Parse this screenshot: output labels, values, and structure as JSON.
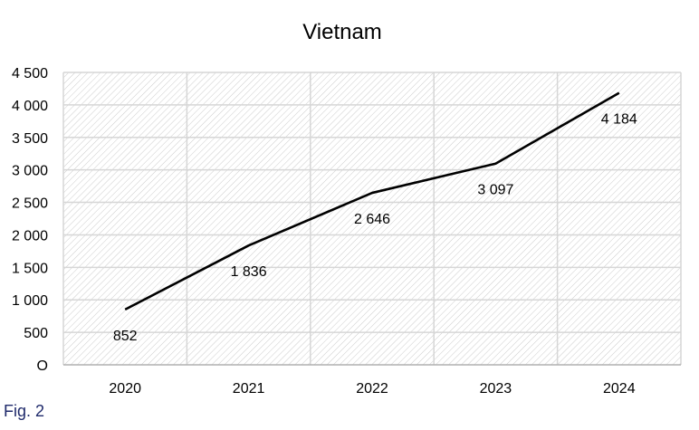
{
  "figure": {
    "caption": "Fig. 2"
  },
  "chart_data": {
    "type": "line",
    "title": "Vietnam",
    "categories": [
      "2020",
      "2021",
      "2022",
      "2023",
      "2024"
    ],
    "series": [
      {
        "values": [
          852,
          1836,
          2646,
          3097,
          4184
        ],
        "labels": [
          "852",
          "1 836",
          "2 646",
          "3 097",
          "4 184"
        ]
      }
    ],
    "y_ticks": [
      "O",
      "500",
      "1 000",
      "1 500",
      "2 000",
      "2 500",
      "3 000",
      "3 500",
      "4 000",
      "4 500"
    ],
    "ylim": [
      0,
      4500
    ],
    "xlabel": "",
    "ylabel": "",
    "grid": true,
    "colors": {
      "line": "#000000",
      "grid": "#d6d6d6",
      "hatch": "#c8c8c8",
      "caption": "#1f2a6b"
    }
  }
}
